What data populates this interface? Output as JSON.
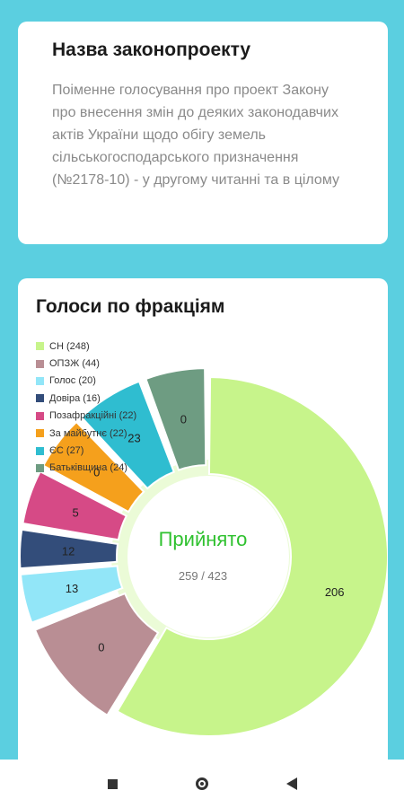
{
  "bill": {
    "title": "Назва законопроекту",
    "description": "Поіменне голосування  про проект Закону про внесення змін до деяких законодавчих актів України щодо обігу земель сільськогосподарського призначення (№2178-10) - у другому читанні та в цілому"
  },
  "votes": {
    "title": "Голоси по фракціям",
    "status": "Прийнято",
    "count": "259 / 423",
    "status_color": "#2fc12f"
  },
  "legend": [
    {
      "label": "СН (248)",
      "color": "#C7F48B"
    },
    {
      "label": "ОПЗЖ (44)",
      "color": "#B98E94"
    },
    {
      "label": "Голос (20)",
      "color": "#92E6F8"
    },
    {
      "label": "Довіра (16)",
      "color": "#334D7A"
    },
    {
      "label": "Позафракційні (22)",
      "color": "#D64A86"
    },
    {
      "label": "За майбутнє (22)",
      "color": "#F5A01C"
    },
    {
      "label": "ЄС (27)",
      "color": "#2FBDD0"
    },
    {
      "label": "Батьківщина (24)",
      "color": "#6E9C82"
    }
  ],
  "chart_data": {
    "type": "pie",
    "center_text": "Прийнято",
    "center_subtext": "259 / 423",
    "slices": [
      {
        "name": "СН",
        "value": 248,
        "label": "206",
        "color": "#C7F48B"
      },
      {
        "name": "ОПЗЖ",
        "value": 44,
        "label": "0",
        "color": "#B98E94"
      },
      {
        "name": "Голос",
        "value": 20,
        "label": "13",
        "color": "#92E6F8"
      },
      {
        "name": "Довіра",
        "value": 16,
        "label": "12",
        "color": "#334D7A"
      },
      {
        "name": "Позафракційні",
        "value": 22,
        "label": "5",
        "color": "#D64A86"
      },
      {
        "name": "За майбутнє",
        "value": 22,
        "label": "0",
        "color": "#F5A01C"
      },
      {
        "name": "ЄС",
        "value": 27,
        "label": "23",
        "color": "#2FBDD0"
      },
      {
        "name": "Батьківщина",
        "value": 24,
        "label": "0",
        "color": "#6E9C82"
      }
    ]
  },
  "navbar": {
    "icons": [
      "recents-square-icon",
      "home-circle-icon",
      "back-triangle-icon"
    ]
  }
}
